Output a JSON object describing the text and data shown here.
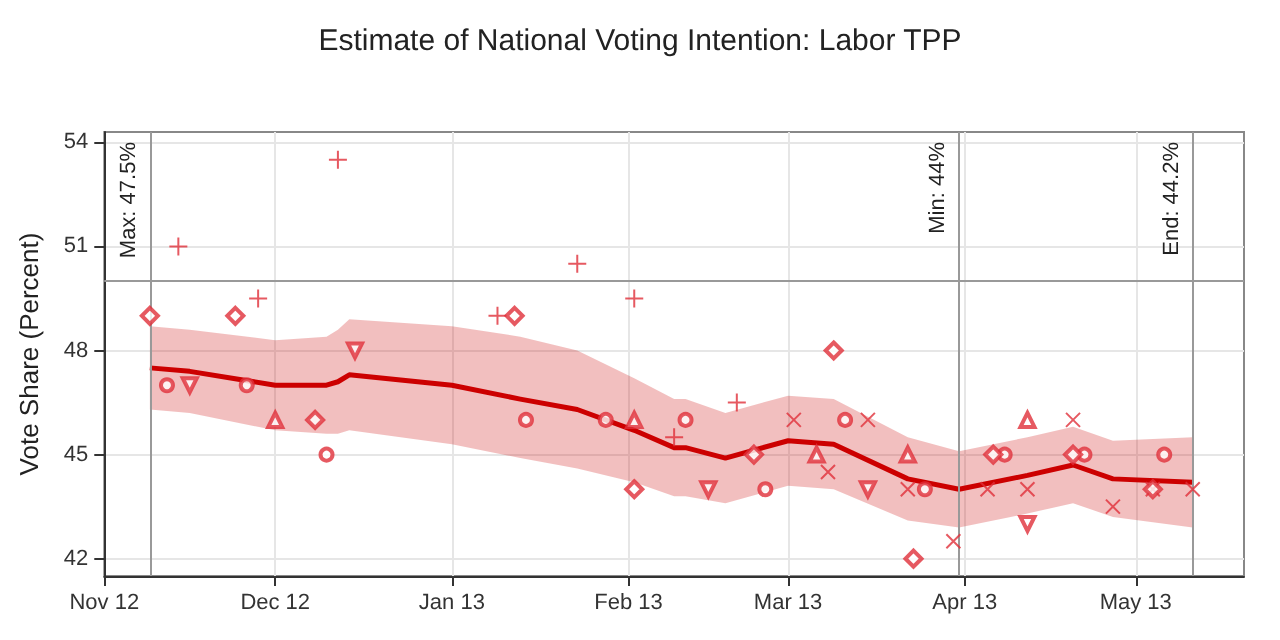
{
  "chart_data": {
    "type": "scatter",
    "title": "Estimate of National Voting Intention: Labor TPP",
    "ylabel": "Vote Share (Percent)",
    "xlim": [
      "2012-11-01",
      "2013-05-20"
    ],
    "ylim": [
      41.5,
      54.3
    ],
    "yticks": [
      42,
      45,
      48,
      51,
      54
    ],
    "xticks": [
      {
        "value": "2012-11-01",
        "label": "Nov 12"
      },
      {
        "value": "2012-12-01",
        "label": "Dec 12"
      },
      {
        "value": "2013-01-01",
        "label": "Jan 13"
      },
      {
        "value": "2013-02-01",
        "label": "Feb 13"
      },
      {
        "value": "2013-03-01",
        "label": "Mar 13"
      },
      {
        "value": "2013-04-01",
        "label": "Apr 13"
      },
      {
        "value": "2013-05-01",
        "label": "May 13"
      }
    ],
    "grid": true,
    "series": [
      {
        "color": "#e0303a",
        "marker": "circle",
        "x": [
          "2012-11-12",
          "2012-11-26",
          "2012-12-10",
          "2013-01-14",
          "2013-01-28",
          "2013-02-11",
          "2013-02-25",
          "2013-03-11",
          "2013-03-25",
          "2013-04-08",
          "2013-04-22",
          "2013-05-06"
        ],
        "values": [
          47,
          47,
          45,
          46,
          46,
          46,
          44,
          46,
          44,
          45,
          45,
          45
        ]
      },
      {
        "color": "#e0303a",
        "marker": "triangle",
        "x": [
          "2012-12-01",
          "2013-02-02",
          "2013-03-06",
          "2013-03-22",
          "2013-04-12"
        ],
        "values": [
          46,
          46,
          45,
          45,
          46
        ]
      },
      {
        "color": "#e0303a",
        "marker": "plus",
        "x": [
          "2012-11-14",
          "2012-11-28",
          "2012-12-12",
          "2013-01-09",
          "2013-01-23",
          "2013-02-02",
          "2013-02-09",
          "2013-02-20"
        ],
        "values": [
          51,
          49.5,
          53.5,
          49,
          50.5,
          49.5,
          45.5,
          46.5
        ]
      },
      {
        "color": "#e0303a",
        "marker": "cross",
        "x": [
          "2013-03-02",
          "2013-03-08",
          "2013-03-15",
          "2013-03-22",
          "2013-03-30",
          "2013-04-05",
          "2013-04-12",
          "2013-04-20",
          "2013-04-27",
          "2013-05-04",
          "2013-05-11"
        ],
        "values": [
          46,
          44.5,
          46,
          44,
          42.5,
          44,
          44,
          46,
          43.5,
          44,
          44
        ]
      },
      {
        "color": "#e0303a",
        "marker": "diamond",
        "x": [
          "2012-11-09",
          "2012-11-24",
          "2012-12-08",
          "2013-01-12",
          "2013-02-02",
          "2013-02-23",
          "2013-03-09",
          "2013-03-23",
          "2013-04-06",
          "2013-04-20",
          "2013-05-04"
        ],
        "values": [
          49,
          49,
          46,
          49,
          44,
          45,
          48,
          42,
          45,
          45,
          44
        ]
      },
      {
        "color": "#e0303a",
        "marker": "triangle-down",
        "x": [
          "2012-11-16",
          "2012-12-15",
          "2013-02-15",
          "2013-03-15",
          "2013-04-12"
        ],
        "values": [
          47,
          48,
          44,
          44,
          43
        ]
      },
      {
        "type": "line",
        "color": "#cc0000",
        "marker": "none",
        "x": [
          "2012-11-09",
          "2012-11-16",
          "2012-12-01",
          "2012-12-10",
          "2012-12-12",
          "2012-12-14",
          "2013-01-01",
          "2013-01-13",
          "2013-01-23",
          "2013-02-02",
          "2013-02-09",
          "2013-02-11",
          "2013-02-18",
          "2013-03-01",
          "2013-03-09",
          "2013-03-22",
          "2013-03-31",
          "2013-04-12",
          "2013-04-20",
          "2013-04-27",
          "2013-05-11"
        ],
        "values": [
          47.5,
          47.4,
          47.0,
          47.0,
          47.1,
          47.3,
          47.0,
          46.6,
          46.3,
          45.7,
          45.2,
          45.2,
          44.9,
          45.4,
          45.3,
          44.3,
          44.0,
          44.4,
          44.7,
          44.3,
          44.2
        ],
        "lower": [
          46.3,
          46.2,
          45.7,
          45.6,
          45.6,
          45.7,
          45.3,
          44.9,
          44.6,
          44.2,
          43.8,
          43.8,
          43.6,
          44.1,
          44.0,
          43.1,
          42.9,
          43.3,
          43.6,
          43.2,
          42.9
        ],
        "upper": [
          48.7,
          48.6,
          48.3,
          48.4,
          48.6,
          48.9,
          48.7,
          48.4,
          48.0,
          47.2,
          46.6,
          46.6,
          46.2,
          46.7,
          46.6,
          45.5,
          45.1,
          45.5,
          45.8,
          45.4,
          45.5
        ]
      }
    ],
    "ref_lines": [
      {
        "axis": "y",
        "value": 50,
        "label": null,
        "color": "#999999"
      },
      {
        "axis": "x",
        "value": "2012-11-09",
        "label": "Max: 47.5%",
        "color": "#999999"
      },
      {
        "axis": "x",
        "value": "2013-03-31",
        "label": "Min: 44%",
        "color": "#999999"
      },
      {
        "axis": "x",
        "value": "2013-05-11",
        "label": "End: 44.2%",
        "color": "#999999"
      }
    ]
  }
}
